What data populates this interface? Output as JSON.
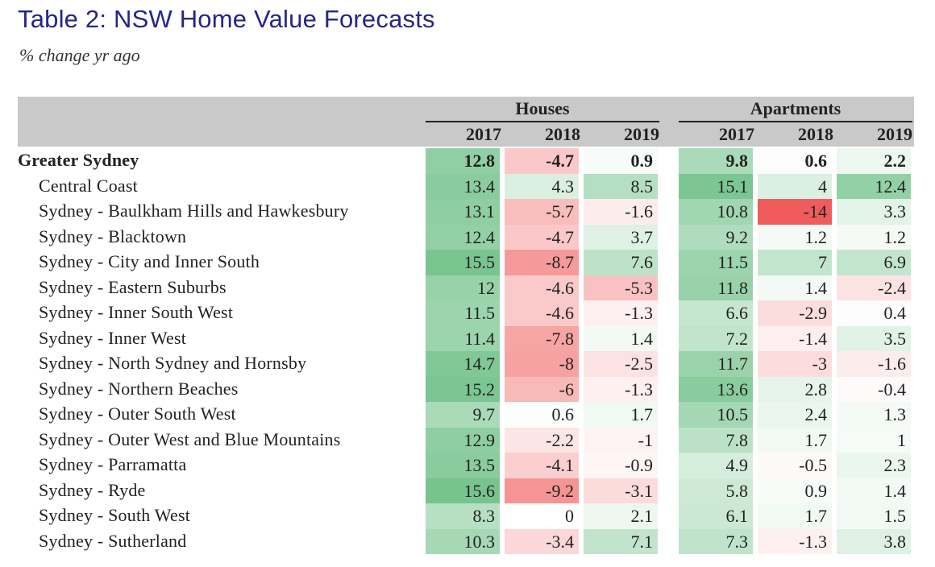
{
  "title": "Table 2: NSW Home Value Forecasts",
  "subtitle": "% change yr ago",
  "groups": [
    "Houses",
    "Apartments"
  ],
  "years": [
    "2017",
    "2018",
    "2019",
    "2017",
    "2018",
    "2019"
  ],
  "rows": [
    {
      "label": "Greater Sydney",
      "bold": true,
      "values": [
        "12.8",
        "-4.7",
        "0.9",
        "9.8",
        "0.6",
        "2.2"
      ]
    },
    {
      "label": "Central Coast",
      "values": [
        "13.4",
        "4.3",
        "8.5",
        "15.1",
        "4",
        "12.4"
      ]
    },
    {
      "label": "Sydney - Baulkham Hills and Hawkesbury",
      "values": [
        "13.1",
        "-5.7",
        "-1.6",
        "10.8",
        "-14",
        "3.3"
      ]
    },
    {
      "label": "Sydney - Blacktown",
      "values": [
        "12.4",
        "-4.7",
        "3.7",
        "9.2",
        "1.2",
        "1.2"
      ]
    },
    {
      "label": "Sydney - City and Inner South",
      "values": [
        "15.5",
        "-8.7",
        "7.6",
        "11.5",
        "7",
        "6.9"
      ]
    },
    {
      "label": "Sydney - Eastern Suburbs",
      "values": [
        "12",
        "-4.6",
        "-5.3",
        "11.8",
        "1.4",
        "-2.4"
      ]
    },
    {
      "label": "Sydney - Inner South West",
      "values": [
        "11.5",
        "-4.6",
        "-1.3",
        "6.6",
        "-2.9",
        "0.4"
      ]
    },
    {
      "label": "Sydney - Inner West",
      "values": [
        "11.4",
        "-7.8",
        "1.4",
        "7.2",
        "-1.4",
        "3.5"
      ]
    },
    {
      "label": "Sydney - North Sydney and Hornsby",
      "values": [
        "14.7",
        "-8",
        "-2.5",
        "11.7",
        "-3",
        "-1.6"
      ]
    },
    {
      "label": "Sydney - Northern Beaches",
      "values": [
        "15.2",
        "-6",
        "-1.3",
        "13.6",
        "2.8",
        "-0.4"
      ]
    },
    {
      "label": "Sydney - Outer South West",
      "values": [
        "9.7",
        "0.6",
        "1.7",
        "10.5",
        "2.4",
        "1.3"
      ]
    },
    {
      "label": "Sydney - Outer West and Blue Mountains",
      "values": [
        "12.9",
        "-2.2",
        "-1",
        "7.8",
        "1.7",
        "1"
      ]
    },
    {
      "label": "Sydney - Parramatta",
      "values": [
        "13.5",
        "-4.1",
        "-0.9",
        "4.9",
        "-0.5",
        "2.3"
      ]
    },
    {
      "label": "Sydney - Ryde",
      "values": [
        "15.6",
        "-9.2",
        "-3.1",
        "5.8",
        "0.9",
        "1.4"
      ]
    },
    {
      "label": "Sydney - South West",
      "values": [
        "8.3",
        "0",
        "2.1",
        "6.1",
        "1.7",
        "1.5"
      ]
    },
    {
      "label": "Sydney - Sutherland",
      "values": [
        "10.3",
        "-3.4",
        "7.1",
        "7.3",
        "-1.3",
        "3.8"
      ]
    }
  ],
  "colors": {
    "title": "#25258a",
    "header_band": "#c9c9c9",
    "positive": "#5cb878",
    "negative": "#ee4a4a",
    "neutral": "#ffffff"
  }
}
